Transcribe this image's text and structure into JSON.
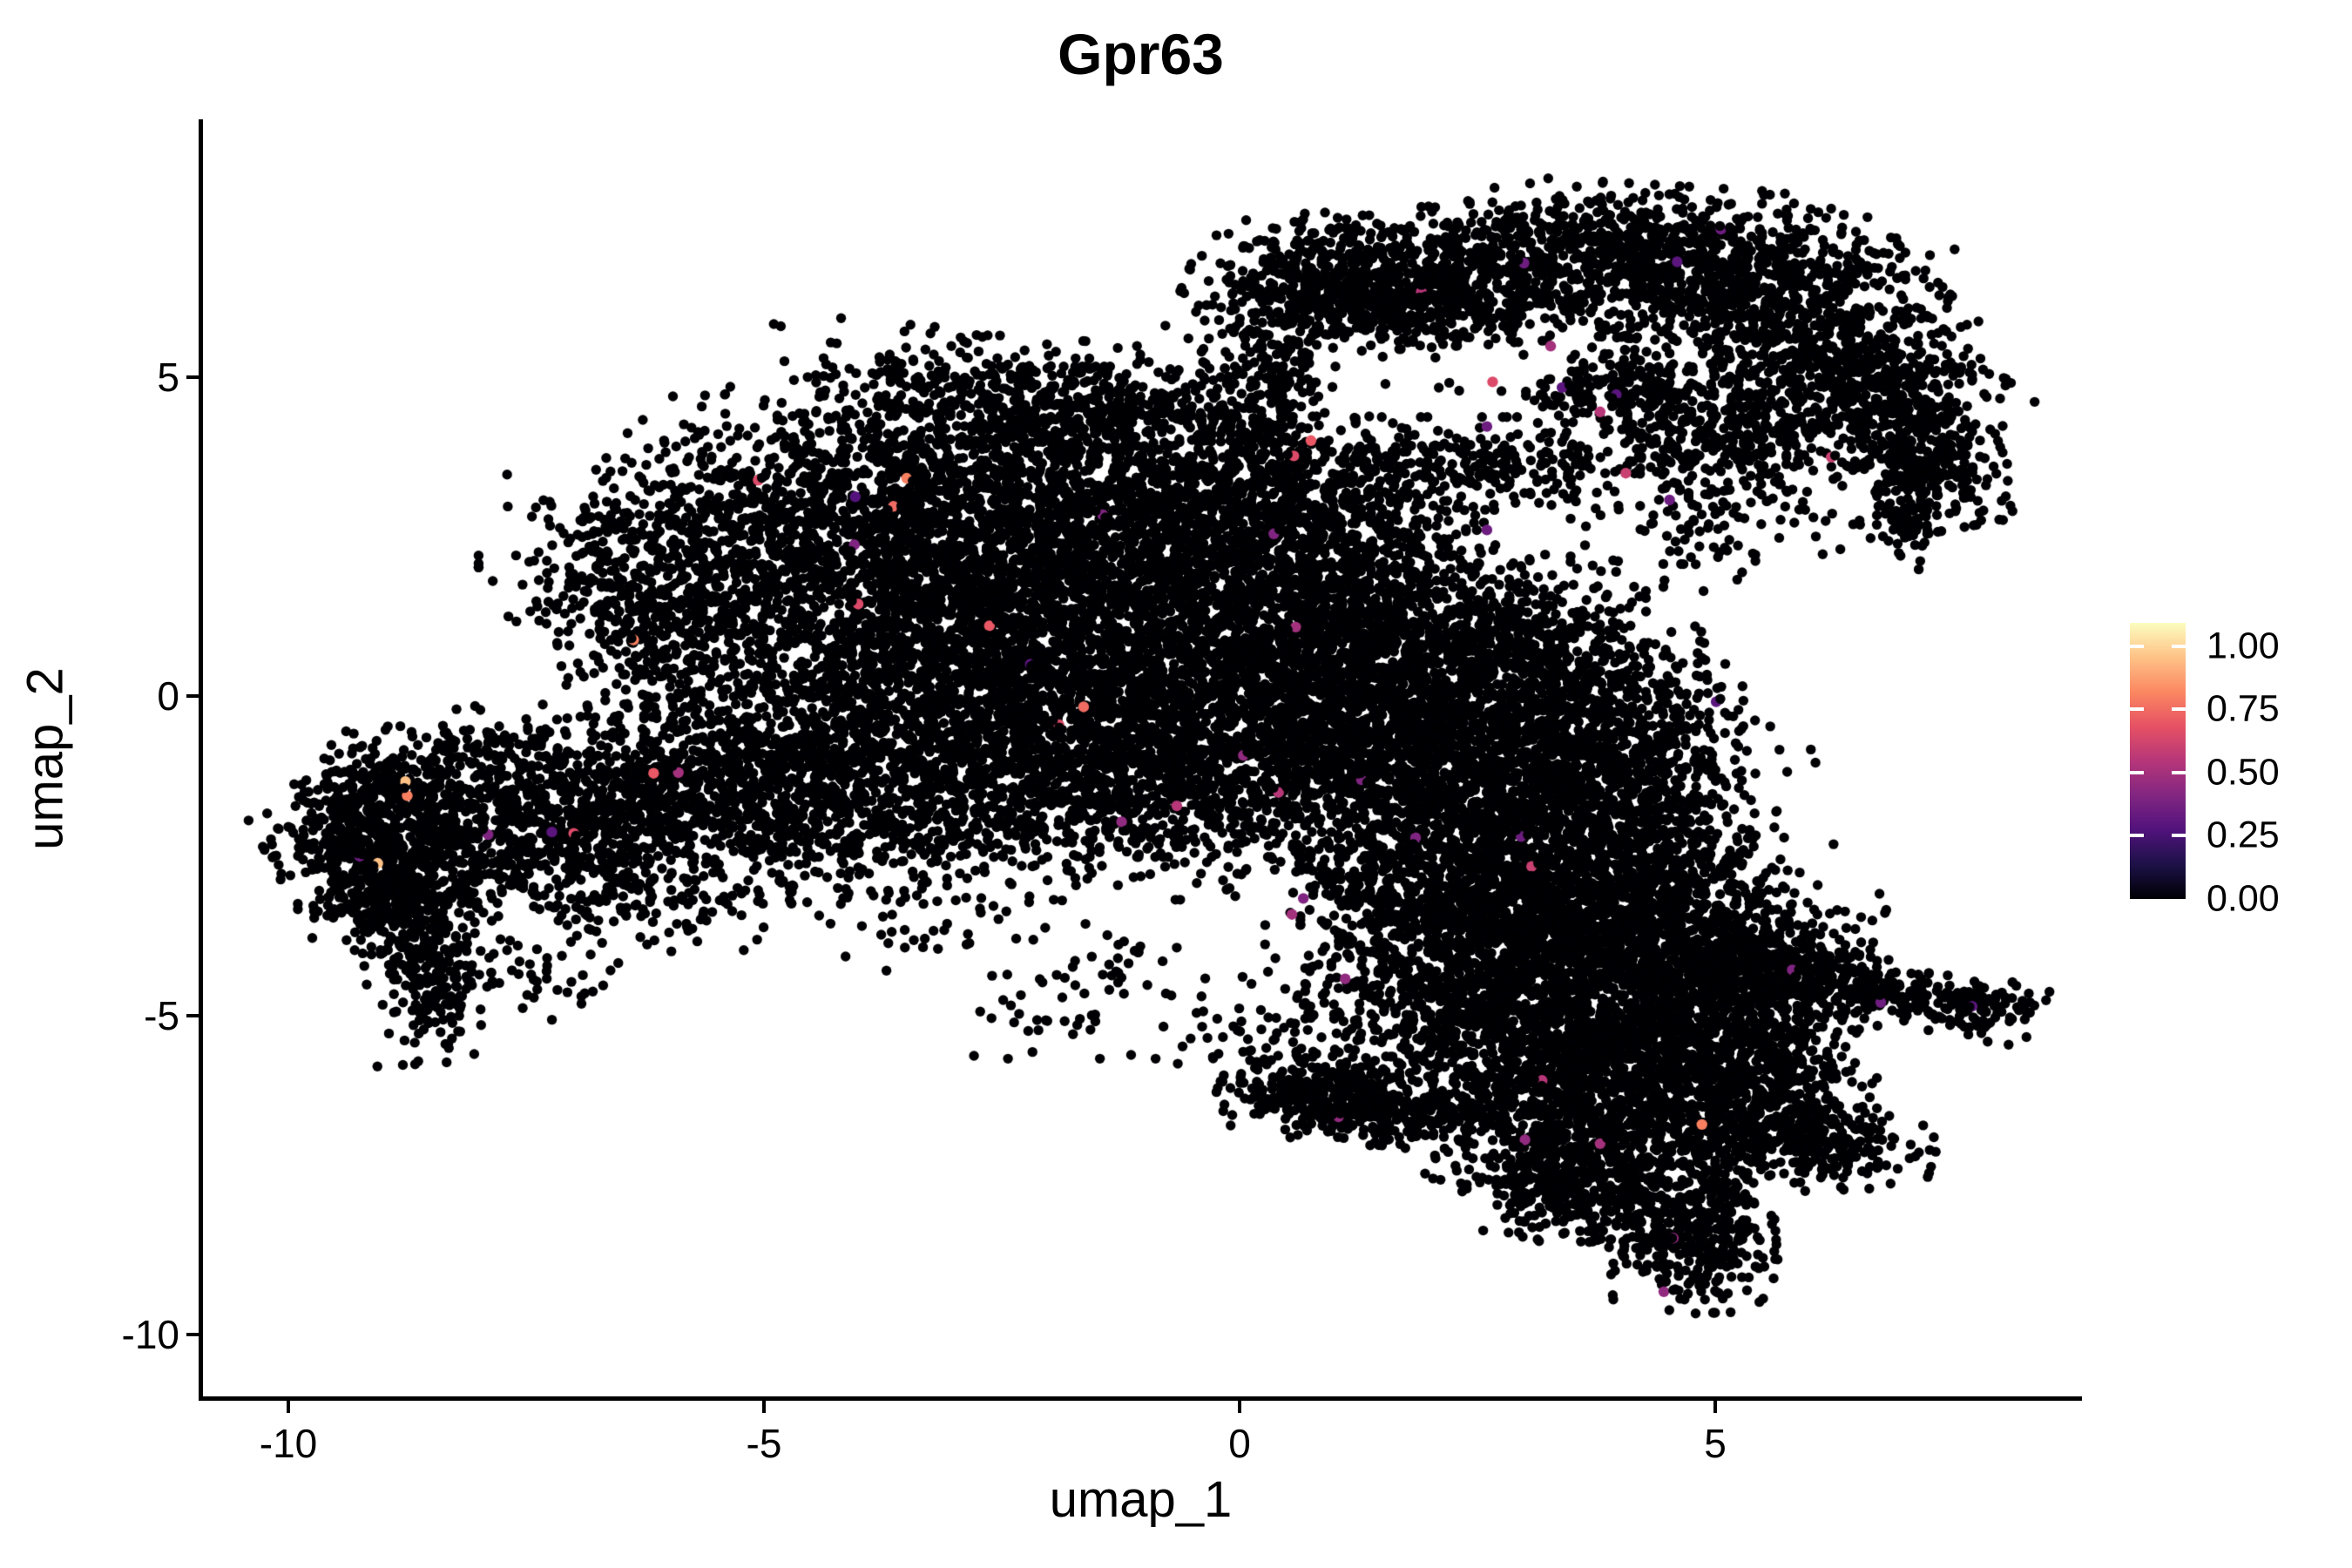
{
  "title": "Gpr63",
  "axes": {
    "x": {
      "label": "umap_1",
      "tick_labels": [
        "-10",
        "-5",
        "0",
        "5"
      ],
      "tick_values": [
        -10,
        -5,
        0,
        5
      ]
    },
    "y": {
      "label": "umap_2",
      "tick_labels": [
        "5",
        "0",
        "-5",
        "-10"
      ],
      "tick_values": [
        5,
        0,
        -5,
        -10
      ]
    }
  },
  "legend": {
    "tick_labels": [
      "1.00",
      "0.75",
      "0.50",
      "0.25",
      "0.00"
    ],
    "tick_values": [
      1.0,
      0.75,
      0.5,
      0.25,
      0.0
    ],
    "bar_tick_values": [
      1.0,
      0.75,
      0.5,
      0.25
    ]
  },
  "colors": {
    "point_base": "#000004",
    "text": "#000000",
    "background": "#ffffff",
    "magma_stops": [
      "#000004",
      "#1d1147",
      "#51127c",
      "#822681",
      "#b63679",
      "#e65164",
      "#fb8861",
      "#fec287",
      "#fcfdbf"
    ]
  },
  "chart_data": {
    "type": "scatter",
    "title": "Gpr63",
    "xlabel": "umap_1",
    "ylabel": "umap_2",
    "xlim": [
      -10.92,
      8.84
    ],
    "ylim": [
      -11.0,
      9.05
    ],
    "x_ticks": [
      -10,
      -5,
      0,
      5
    ],
    "y_ticks": [
      5,
      0,
      -5,
      -10
    ],
    "grid": false,
    "legend_position": "right",
    "point_radius_px": 5.7,
    "color_scale": {
      "name": "magma",
      "domain": [
        0,
        1.092
      ],
      "legend_ticks": [
        1.0,
        0.75,
        0.5,
        0.25,
        0.0
      ]
    },
    "cluster_fields": [
      "cx",
      "cy",
      "sx",
      "sy",
      "n",
      "rot_deg"
    ],
    "clusters": [
      [
        0.9,
        6.5,
        0.65,
        0.45,
        350,
        -15
      ],
      [
        2.4,
        6.6,
        0.9,
        0.5,
        550,
        5
      ],
      [
        4.3,
        6.8,
        0.9,
        0.55,
        650,
        -5
      ],
      [
        5.8,
        5.8,
        0.75,
        0.65,
        600,
        35
      ],
      [
        6.7,
        4.7,
        0.55,
        0.55,
        420,
        40
      ],
      [
        7.3,
        3.7,
        0.33,
        0.5,
        230,
        15
      ],
      [
        6.95,
        2.85,
        0.2,
        0.4,
        80,
        5
      ],
      [
        4.0,
        4.8,
        0.45,
        0.3,
        180,
        0
      ],
      [
        2.3,
        3.6,
        1.1,
        0.35,
        300,
        0
      ],
      [
        0.45,
        4.9,
        0.25,
        0.75,
        150,
        0
      ],
      [
        1.6,
        6.1,
        0.6,
        0.25,
        250,
        -10
      ],
      [
        5.3,
        6.9,
        1.0,
        0.4,
        150,
        -5
      ],
      [
        5.0,
        4.1,
        0.7,
        0.4,
        300,
        15
      ],
      [
        2.2,
        4.9,
        0.4,
        0.3,
        6,
        0
      ],
      [
        0.3,
        3.3,
        0.7,
        0.7,
        120,
        0
      ],
      [
        1.3,
        2.7,
        0.7,
        0.5,
        150,
        0
      ],
      [
        -0.1,
        4.4,
        0.35,
        0.55,
        70,
        0
      ],
      [
        0.1,
        5.8,
        0.4,
        0.6,
        80,
        0
      ],
      [
        -2.0,
        4.5,
        1.1,
        0.5,
        550,
        -8
      ],
      [
        -3.6,
        3.4,
        1.0,
        0.75,
        650,
        -25
      ],
      [
        -1.2,
        3.4,
        1.1,
        0.8,
        700,
        0
      ],
      [
        -4.9,
        1.9,
        1.0,
        0.85,
        650,
        -20
      ],
      [
        -3.0,
        1.9,
        1.2,
        0.9,
        900,
        0
      ],
      [
        -1.2,
        1.7,
        1.1,
        0.9,
        800,
        0
      ],
      [
        0.1,
        2.4,
        0.8,
        0.9,
        450,
        0
      ],
      [
        -3.4,
        0.3,
        1.3,
        0.8,
        850,
        0
      ],
      [
        -1.4,
        0.2,
        1.3,
        0.85,
        900,
        0
      ],
      [
        0.4,
        0.6,
        0.9,
        0.9,
        550,
        0
      ],
      [
        -2.3,
        -1.0,
        1.3,
        0.6,
        600,
        0
      ],
      [
        -0.5,
        -1.2,
        1.1,
        0.6,
        500,
        0
      ],
      [
        -4.7,
        -0.9,
        0.9,
        0.6,
        400,
        15
      ],
      [
        1.2,
        1.4,
        0.6,
        0.8,
        250,
        0
      ],
      [
        -5.3,
        3.0,
        0.7,
        0.6,
        150,
        -30
      ],
      [
        -6.2,
        0.9,
        0.45,
        0.9,
        280,
        10
      ],
      [
        -6.9,
        1.8,
        0.5,
        0.6,
        90,
        0
      ],
      [
        -1.5,
        -2.2,
        1.5,
        0.45,
        280,
        0
      ],
      [
        -3.9,
        -2.0,
        0.9,
        0.5,
        300,
        10
      ],
      [
        -6.6,
        3.0,
        0.5,
        0.4,
        40,
        0
      ],
      [
        -5.6,
        -1.7,
        0.8,
        0.6,
        350,
        15
      ],
      [
        -6.8,
        -1.9,
        0.8,
        0.6,
        400,
        10
      ],
      [
        -8.2,
        -2.0,
        0.75,
        0.65,
        500,
        10
      ],
      [
        -9.2,
        -2.4,
        0.45,
        0.55,
        350,
        20
      ],
      [
        -8.55,
        -4.1,
        0.3,
        0.75,
        280,
        5
      ],
      [
        -8.8,
        -3.1,
        0.5,
        0.4,
        200,
        0
      ],
      [
        -7.3,
        -0.9,
        0.9,
        0.4,
        140,
        0
      ],
      [
        -6.5,
        -3.1,
        0.8,
        0.45,
        160,
        -10
      ],
      [
        -9.0,
        -1.3,
        0.5,
        0.35,
        110,
        0
      ],
      [
        -7.6,
        -4.3,
        0.5,
        0.35,
        50,
        0
      ],
      [
        -3.6,
        -3.2,
        0.9,
        0.5,
        90,
        0
      ],
      [
        1.9,
        0.3,
        0.9,
        0.8,
        550,
        -30
      ],
      [
        2.9,
        -0.5,
        0.9,
        0.8,
        600,
        -30
      ],
      [
        1.7,
        -1.2,
        1.0,
        0.8,
        650,
        -20
      ],
      [
        3.0,
        -1.9,
        1.0,
        0.8,
        650,
        -25
      ],
      [
        4.1,
        -1.4,
        0.7,
        0.7,
        450,
        -30
      ],
      [
        2.1,
        -2.9,
        1.0,
        0.65,
        500,
        -15
      ],
      [
        4.2,
        -2.8,
        0.75,
        0.6,
        400,
        -25
      ],
      [
        3.3,
        0.6,
        0.6,
        0.55,
        280,
        -20
      ],
      [
        4.35,
        -0.1,
        0.4,
        0.5,
        130,
        -20
      ],
      [
        0.8,
        -0.3,
        0.7,
        0.7,
        350,
        0
      ],
      [
        2.3,
        1.6,
        0.8,
        0.5,
        220,
        -20
      ],
      [
        4.8,
        2.6,
        0.6,
        0.5,
        70,
        0
      ],
      [
        5.6,
        3.1,
        0.5,
        0.4,
        50,
        0
      ],
      [
        2.7,
        7.3,
        0.8,
        0.3,
        35,
        0
      ],
      [
        3.3,
        -3.7,
        1.0,
        0.7,
        650,
        -10
      ],
      [
        4.6,
        -3.9,
        0.9,
        0.65,
        550,
        -15
      ],
      [
        2.8,
        -4.9,
        0.8,
        0.7,
        550,
        0
      ],
      [
        4.0,
        -5.2,
        0.9,
        0.75,
        650,
        0
      ],
      [
        5.2,
        -5.0,
        0.7,
        0.6,
        400,
        -20
      ],
      [
        3.4,
        -6.2,
        0.75,
        0.6,
        450,
        10
      ],
      [
        4.6,
        -6.5,
        0.75,
        0.65,
        500,
        0
      ],
      [
        5.6,
        -6.2,
        0.5,
        0.5,
        280,
        0
      ],
      [
        6.1,
        -7.05,
        0.55,
        0.28,
        220,
        -12
      ],
      [
        3.3,
        -7.5,
        0.45,
        0.5,
        350,
        10
      ],
      [
        4.75,
        -8.35,
        0.4,
        0.6,
        420,
        3
      ],
      [
        6.7,
        -4.6,
        0.8,
        0.22,
        250,
        -15
      ],
      [
        7.75,
        -4.8,
        0.3,
        0.18,
        80,
        -10
      ],
      [
        5.6,
        -4.3,
        0.5,
        0.4,
        200,
        0
      ],
      [
        2.4,
        -3.3,
        0.8,
        0.4,
        250,
        0
      ],
      [
        1.9,
        -4.6,
        0.55,
        0.6,
        200,
        0
      ],
      [
        4.0,
        -7.9,
        0.3,
        0.5,
        90,
        0
      ],
      [
        0.85,
        -6.35,
        0.5,
        0.28,
        300,
        -12
      ],
      [
        1.8,
        -6.6,
        0.5,
        0.22,
        120,
        -10
      ],
      [
        2.5,
        -6.4,
        0.4,
        0.3,
        90,
        0
      ],
      [
        0.9,
        -5.7,
        0.5,
        0.3,
        70,
        0
      ],
      [
        -1.9,
        -4.8,
        0.5,
        0.4,
        40,
        0
      ],
      [
        -1.2,
        -4.2,
        0.4,
        0.3,
        25,
        0
      ],
      [
        0.1,
        -5.3,
        0.5,
        0.4,
        25,
        0
      ],
      [
        0.6,
        -5.0,
        0.5,
        0.45,
        35,
        0
      ]
    ],
    "highlight_fields": [
      "x",
      "y",
      "value"
    ],
    "highlight_points": [
      [
        -8.75,
        -1.56,
        0.8
      ],
      [
        -8.77,
        -1.34,
        0.95
      ],
      [
        -9.25,
        -2.51,
        0.35
      ],
      [
        -9.06,
        -2.62,
        0.95
      ],
      [
        -7.9,
        -2.17,
        0.4
      ],
      [
        -7.23,
        -2.13,
        0.3
      ],
      [
        -7.0,
        -2.15,
        0.65
      ],
      [
        -5.9,
        -1.2,
        0.5
      ],
      [
        -6.16,
        -1.21,
        0.7
      ],
      [
        -6.37,
        0.88,
        0.8
      ],
      [
        -5.06,
        3.38,
        0.65
      ],
      [
        -3.5,
        3.41,
        0.8
      ],
      [
        -4.04,
        3.12,
        0.28
      ],
      [
        -3.64,
        2.97,
        0.75
      ],
      [
        -4.05,
        2.37,
        0.4
      ],
      [
        -4.01,
        1.44,
        0.65
      ],
      [
        -2.63,
        1.1,
        0.7
      ],
      [
        -1.44,
        2.84,
        0.4
      ],
      [
        -2.2,
        0.5,
        0.3
      ],
      [
        -1.64,
        -0.17,
        0.75
      ],
      [
        -1.9,
        -0.45,
        0.65
      ],
      [
        0.57,
        3.76,
        0.65
      ],
      [
        2.66,
        4.92,
        0.65
      ],
      [
        1.91,
        6.33,
        0.55
      ],
      [
        2.99,
        6.78,
        0.35
      ],
      [
        3.27,
        5.48,
        0.5
      ],
      [
        2.6,
        4.22,
        0.35
      ],
      [
        3.39,
        4.83,
        0.3
      ],
      [
        3.96,
        4.72,
        0.3
      ],
      [
        3.79,
        4.45,
        0.55
      ],
      [
        4.06,
        3.49,
        0.6
      ],
      [
        2.6,
        2.6,
        0.35
      ],
      [
        0.36,
        2.54,
        0.4
      ],
      [
        6.22,
        3.74,
        0.6
      ],
      [
        4.52,
        3.07,
        0.35
      ],
      [
        5.06,
        7.31,
        0.35
      ],
      [
        4.6,
        6.8,
        0.3
      ],
      [
        0.75,
        4.0,
        0.7
      ],
      [
        0.41,
        -1.51,
        0.55
      ],
      [
        0.04,
        -0.93,
        0.45
      ],
      [
        1.85,
        -2.22,
        0.4
      ],
      [
        0.59,
        1.08,
        0.5
      ],
      [
        1.28,
        -1.31,
        0.4
      ],
      [
        -0.66,
        -1.72,
        0.55
      ],
      [
        -1.24,
        -1.97,
        0.45
      ],
      [
        5.01,
        -0.09,
        0.3
      ],
      [
        2.96,
        -2.2,
        0.35
      ],
      [
        1.11,
        -4.43,
        0.45
      ],
      [
        0.67,
        -3.17,
        0.4
      ],
      [
        0.55,
        -3.42,
        0.5
      ],
      [
        3.07,
        -2.67,
        0.6
      ],
      [
        3.0,
        -6.95,
        0.45
      ],
      [
        3.79,
        -7.01,
        0.5
      ],
      [
        3.18,
        -6.02,
        0.55
      ],
      [
        4.46,
        -9.33,
        0.45
      ],
      [
        4.56,
        -8.49,
        0.45
      ],
      [
        4.86,
        -6.71,
        0.8
      ],
      [
        5.81,
        -4.29,
        0.4
      ],
      [
        6.74,
        -4.8,
        0.35
      ],
      [
        7.7,
        -4.86,
        0.3
      ],
      [
        1.04,
        -6.59,
        0.45
      ]
    ]
  }
}
